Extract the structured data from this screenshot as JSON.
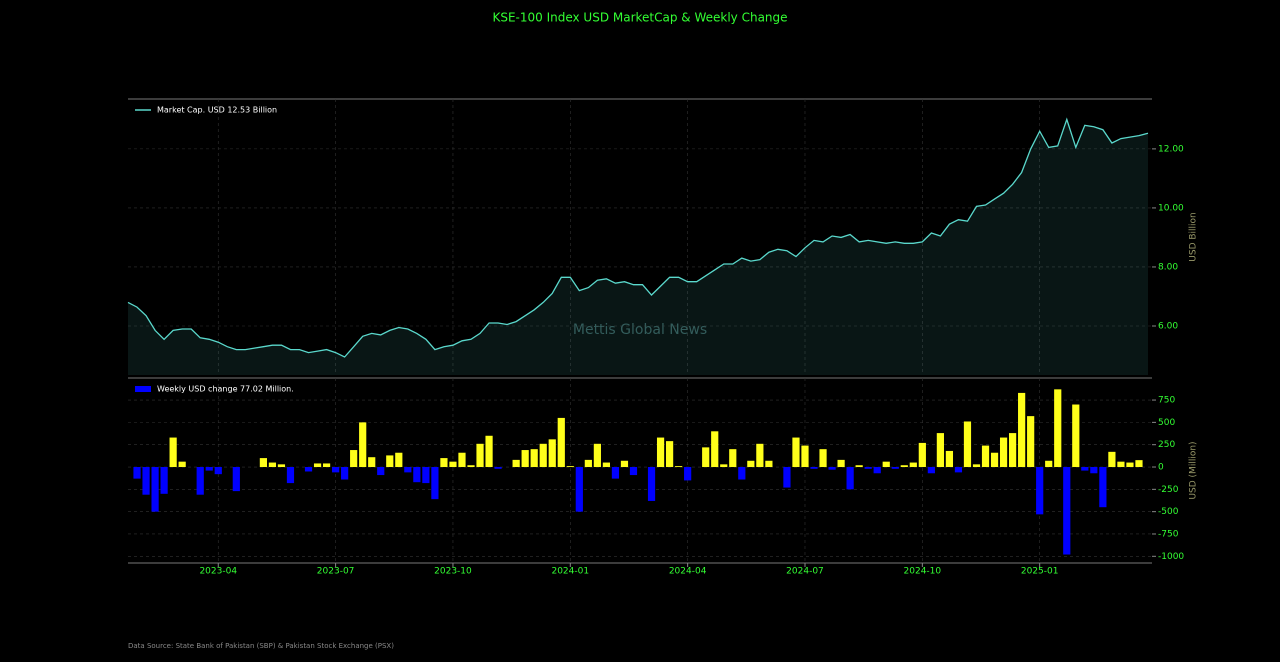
{
  "title": "KSE-100 Index USD MarketCap & Weekly Change",
  "watermark": "Mettis Global News",
  "source": "Data Source: State Bank of Pakistan (SBP) & Pakistan Stock Exchange (PSX)",
  "chart_data": [
    {
      "type": "area",
      "ylabel": "USD Billion",
      "series": [
        {
          "name": "Market Cap. USD 12.53 Billion",
          "color": "#5ad8cc",
          "values": [
            6.8,
            6.64,
            6.35,
            5.85,
            5.55,
            5.85,
            5.9,
            5.9,
            5.6,
            5.55,
            5.45,
            5.3,
            5.2,
            5.2,
            5.25,
            5.3,
            5.35,
            5.35,
            5.2,
            5.2,
            5.1,
            5.15,
            5.2,
            5.1,
            4.95,
            5.3,
            5.65,
            5.75,
            5.7,
            5.85,
            5.95,
            5.9,
            5.75,
            5.55,
            5.2,
            5.3,
            5.35,
            5.5,
            5.55,
            5.75,
            6.1,
            6.1,
            6.05,
            6.15,
            6.35,
            6.55,
            6.8,
            7.1,
            7.65,
            7.65,
            7.2,
            7.3,
            7.55,
            7.6,
            7.45,
            7.5,
            7.4,
            7.4,
            7.05,
            7.35,
            7.65,
            7.65,
            7.5,
            7.5,
            7.7,
            7.9,
            8.1,
            8.1,
            8.3,
            8.2,
            8.25,
            8.5,
            8.6,
            8.55,
            8.35,
            8.65,
            8.9,
            8.85,
            9.05,
            9.0,
            9.1,
            8.85,
            8.9,
            8.85,
            8.8,
            8.85,
            8.8,
            8.8,
            8.85,
            9.15,
            9.05,
            9.45,
            9.6,
            9.55,
            10.05,
            10.1,
            10.3,
            10.5,
            10.8,
            11.2,
            12.0,
            12.6,
            12.05,
            12.1,
            13.0,
            12.05,
            12.8,
            12.75,
            12.65,
            12.2,
            12.35,
            12.4,
            12.45,
            12.53
          ]
        }
      ],
      "ylim": [
        4.34,
        13.69
      ],
      "yticks": [
        {
          "value": 6,
          "label": "6.00"
        },
        {
          "value": 8,
          "label": "8.00"
        },
        {
          "value": 10,
          "label": "10.00"
        },
        {
          "value": 12,
          "label": "12.00"
        }
      ],
      "grid": true
    },
    {
      "type": "bar",
      "ylabel": "USD (Million)",
      "categories": [
        null,
        null,
        null,
        null,
        null,
        null,
        null,
        null,
        null,
        "2023-04",
        null,
        null,
        null,
        null,
        null,
        null,
        null,
        null,
        null,
        null,
        null,
        null,
        "2023-07",
        null,
        null,
        null,
        null,
        null,
        null,
        null,
        null,
        null,
        null,
        null,
        null,
        "2023-10",
        null,
        null,
        null,
        null,
        null,
        null,
        null,
        null,
        null,
        null,
        null,
        null,
        "2024-01",
        null,
        null,
        null,
        null,
        null,
        null,
        null,
        null,
        null,
        null,
        null,
        null,
        "2024-04",
        null,
        null,
        null,
        null,
        null,
        null,
        null,
        null,
        null,
        null,
        null,
        null,
        "2024-07",
        null,
        null,
        null,
        null,
        null,
        null,
        null,
        null,
        null,
        null,
        null,
        null,
        "2024-10",
        null,
        null,
        null,
        null,
        null,
        null,
        null,
        null,
        null,
        null,
        null,
        null,
        "2025-01",
        null,
        null,
        null,
        null,
        null,
        null,
        null,
        null,
        null,
        null,
        null
      ],
      "series": [
        {
          "name": "Weekly USD change 77.02 Million.",
          "color": "#0000ff",
          "values": [
            -130,
            -310,
            -500,
            -300,
            330,
            60,
            0,
            -310,
            -40,
            -80,
            0,
            -270,
            0,
            0,
            100,
            50,
            30,
            -180,
            0,
            -50,
            40,
            40,
            -60,
            -140,
            190,
            500,
            110,
            -90,
            130,
            160,
            -60,
            -170,
            -180,
            -360,
            100,
            60,
            160,
            20,
            260,
            350,
            -20,
            0,
            80,
            190,
            200,
            260,
            310,
            550,
            10,
            -500,
            80,
            260,
            50,
            -130,
            70,
            -90,
            0,
            -380,
            330,
            290,
            10,
            -150,
            0,
            220,
            400,
            30,
            200,
            -140,
            70,
            260,
            70,
            0,
            -230,
            330,
            240,
            -20,
            200,
            -30,
            80,
            -250,
            20,
            -20,
            -70,
            60,
            -20,
            20,
            50,
            270,
            -70,
            380,
            180,
            -60,
            510,
            30,
            240,
            160,
            330,
            380,
            830,
            570,
            -530,
            70,
            870,
            -980,
            700,
            -40,
            -70,
            -450,
            170,
            60,
            50,
            77.02
          ]
        }
      ],
      "positive_color": "#ffff1a",
      "negative_color": "#0000ff",
      "ylim": [
        -1075,
        997
      ],
      "yticks": [
        -1000,
        -750,
        -500,
        -250,
        0,
        250,
        500,
        750
      ],
      "grid": true
    }
  ]
}
